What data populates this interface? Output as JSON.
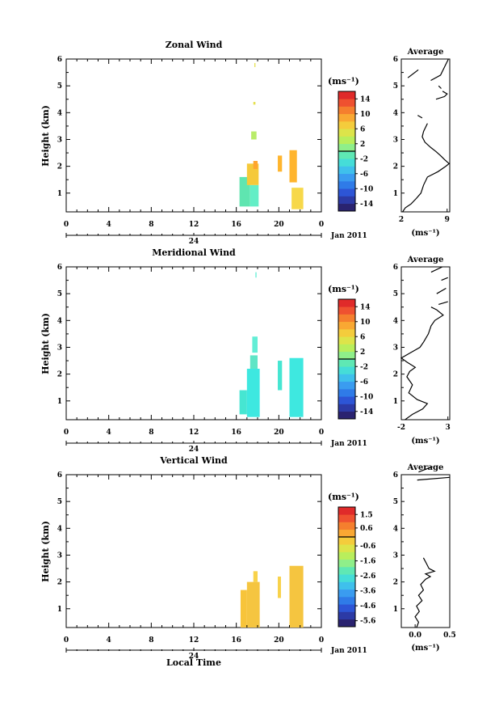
{
  "common": {
    "ylabel": "Height (km)",
    "avg_title": "Average",
    "unit_label": "(ms⁻¹)",
    "date_label": "Jan 2011",
    "date_tick": "24",
    "xlabel": "Local Time",
    "x_ticks": [
      "0",
      "4",
      "8",
      "12",
      "16",
      "20",
      "0"
    ],
    "y_ticks": [
      "1",
      "2",
      "3",
      "4",
      "5",
      "6"
    ]
  },
  "chart_data": [
    {
      "type": "heatmap",
      "title": "Zonal Wind",
      "xlim": [
        0,
        24
      ],
      "ylim": [
        0.3,
        6
      ],
      "colorbar": {
        "ticks": [
          "14",
          "10",
          "6",
          "2",
          "-2",
          "-6",
          "-10",
          "-14"
        ],
        "range": [
          -16,
          16
        ]
      },
      "cells": [
        {
          "x": [
            16.3,
            17.3
          ],
          "y": [
            0.5,
            1.6
          ],
          "value": -3,
          "color": "#5fe5b0"
        },
        {
          "x": [
            17.3,
            18.1
          ],
          "y": [
            0.5,
            1.3
          ],
          "value": -4,
          "color": "#63eec6"
        },
        {
          "x": [
            17.0,
            18.1
          ],
          "y": [
            1.3,
            2.1
          ],
          "value": 4,
          "color": "#f5c93a"
        },
        {
          "x": [
            17.6,
            18.0
          ],
          "y": [
            1.9,
            2.2
          ],
          "value": 7,
          "color": "#ffa52e"
        },
        {
          "x": [
            17.4,
            17.9
          ],
          "y": [
            3.0,
            3.3
          ],
          "value": 1,
          "color": "#b9ec6a"
        },
        {
          "x": [
            17.6,
            17.8
          ],
          "y": [
            4.3,
            4.4
          ],
          "value": 3,
          "color": "#e5e04f"
        },
        {
          "x": [
            17.7,
            17.8
          ],
          "y": [
            5.7,
            5.85
          ],
          "value": 3,
          "color": "#e5e04f"
        },
        {
          "x": [
            19.9,
            20.3
          ],
          "y": [
            1.8,
            2.4
          ],
          "value": 6,
          "color": "#ffb52e"
        },
        {
          "x": [
            21.0,
            21.7
          ],
          "y": [
            1.4,
            2.6
          ],
          "value": 6,
          "color": "#ffb52e"
        },
        {
          "x": [
            21.2,
            22.3
          ],
          "y": [
            0.4,
            1.2
          ],
          "value": 3,
          "color": "#f7d84a"
        }
      ],
      "average": {
        "xlim": [
          2,
          9.4
        ],
        "x_ticks": [
          "2",
          "9"
        ],
        "profile": [
          [
            2.2,
            0.3
          ],
          [
            2.6,
            0.45
          ],
          [
            3.5,
            0.6
          ],
          [
            4.3,
            0.8
          ],
          [
            5.0,
            1.0
          ],
          [
            5.4,
            1.3
          ],
          [
            6.0,
            1.6
          ],
          [
            7.6,
            1.8
          ],
          [
            8.8,
            2.0
          ],
          [
            9.3,
            2.1
          ],
          [
            8.6,
            2.25
          ],
          [
            8.0,
            2.4
          ],
          [
            7.3,
            2.55
          ],
          [
            6.5,
            2.7
          ],
          [
            5.6,
            2.9
          ],
          [
            5.2,
            3.1
          ],
          [
            5.4,
            3.3
          ],
          [
            6.0,
            3.6
          ]
        ],
        "segments": [
          [
            [
              4.5,
              3.9
            ],
            [
              5.2,
              3.8
            ]
          ],
          [
            [
              7.3,
              4.5
            ],
            [
              8.6,
              4.6
            ],
            [
              9.0,
              4.7
            ],
            [
              8.3,
              4.8
            ]
          ],
          [
            [
              7.7,
              5.0
            ],
            [
              8.1,
              4.9
            ]
          ],
          [
            [
              6.5,
              5.2
            ],
            [
              8.0,
              5.4
            ],
            [
              8.8,
              5.8
            ],
            [
              9.2,
              6.0
            ]
          ],
          [
            [
              3.0,
              5.3
            ],
            [
              4.6,
              5.6
            ]
          ]
        ]
      }
    },
    {
      "type": "heatmap",
      "title": "Meridional Wind",
      "xlim": [
        0,
        24
      ],
      "ylim": [
        0.3,
        6
      ],
      "colorbar": {
        "ticks": [
          "14",
          "10",
          "6",
          "2",
          "-2",
          "-6",
          "-10",
          "-14"
        ],
        "range": [
          -16,
          16
        ]
      },
      "cells": [
        {
          "x": [
            16.3,
            17.0
          ],
          "y": [
            0.5,
            1.4
          ],
          "value": -5,
          "color": "#46e6d2"
        },
        {
          "x": [
            17.0,
            18.2
          ],
          "y": [
            0.4,
            2.2
          ],
          "value": -5,
          "color": "#3ee8e0"
        },
        {
          "x": [
            17.3,
            18.0
          ],
          "y": [
            2.2,
            2.7
          ],
          "value": -4,
          "color": "#5fe5c6"
        },
        {
          "x": [
            17.5,
            18.0
          ],
          "y": [
            2.8,
            3.4
          ],
          "value": -4,
          "color": "#63eed6"
        },
        {
          "x": [
            17.8,
            17.9
          ],
          "y": [
            5.6,
            5.8
          ],
          "value": -4,
          "color": "#63eed6"
        },
        {
          "x": [
            19.9,
            20.3
          ],
          "y": [
            1.4,
            2.5
          ],
          "value": -5,
          "color": "#46e6d2"
        },
        {
          "x": [
            21.0,
            22.3
          ],
          "y": [
            0.4,
            2.6
          ],
          "value": -5,
          "color": "#3ee8e0"
        }
      ],
      "average": {
        "xlim": [
          -2,
          3.2
        ],
        "x_ticks": [
          "-2",
          "3"
        ],
        "profile": [
          [
            -1.6,
            0.3
          ],
          [
            -0.8,
            0.5
          ],
          [
            0.3,
            0.7
          ],
          [
            0.8,
            0.9
          ],
          [
            -0.3,
            1.05
          ],
          [
            -1.2,
            1.3
          ],
          [
            -0.8,
            1.6
          ],
          [
            -1.4,
            1.9
          ],
          [
            -1.1,
            2.1
          ],
          [
            -0.5,
            2.25
          ],
          [
            -1.4,
            2.45
          ],
          [
            -2.0,
            2.6
          ],
          [
            -1.0,
            2.8
          ],
          [
            0.0,
            3.0
          ],
          [
            0.4,
            3.2
          ],
          [
            0.9,
            3.5
          ],
          [
            1.2,
            3.8
          ],
          [
            1.6,
            4.0
          ],
          [
            2.5,
            4.2
          ],
          [
            1.8,
            4.4
          ],
          [
            1.2,
            4.5
          ]
        ],
        "segments": [
          [
            [
              2.0,
              4.6
            ],
            [
              3.0,
              4.7
            ]
          ],
          [
            [
              1.8,
              5.0
            ],
            [
              2.8,
              5.2
            ]
          ],
          [
            [
              2.3,
              5.5
            ],
            [
              3.0,
              5.6
            ]
          ],
          [
            [
              1.2,
              5.8
            ],
            [
              2.4,
              6.0
            ]
          ]
        ]
      }
    },
    {
      "type": "heatmap",
      "title": "Vertical Wind",
      "xlim": [
        0,
        24
      ],
      "ylim": [
        0.3,
        6
      ],
      "colorbar": {
        "ticks": [
          "1.5",
          "0.6",
          "-0.6",
          "-1.6",
          "-2.6",
          "-3.6",
          "-4.6",
          "-5.6"
        ],
        "range": [
          -6.0,
          2.0
        ]
      },
      "cells": [
        {
          "x": [
            16.4,
            17.0
          ],
          "y": [
            0.3,
            1.7
          ],
          "value": 0.5,
          "color": "#f7c43a"
        },
        {
          "x": [
            17.0,
            18.2
          ],
          "y": [
            0.3,
            2.0
          ],
          "value": 0.5,
          "color": "#f5c540"
        },
        {
          "x": [
            17.6,
            18.0
          ],
          "y": [
            2.0,
            2.4
          ],
          "value": 0.3,
          "color": "#f8d24a"
        },
        {
          "x": [
            19.9,
            20.2
          ],
          "y": [
            1.4,
            2.2
          ],
          "value": 0.2,
          "color": "#f8d24a"
        },
        {
          "x": [
            21.0,
            22.3
          ],
          "y": [
            0.3,
            2.6
          ],
          "value": 0.5,
          "color": "#f5c540"
        }
      ],
      "average": {
        "xlim": [
          -0.2,
          0.5
        ],
        "x_ticks": [
          "0.0",
          "0.5"
        ],
        "profile": [
          [
            0.02,
            0.3
          ],
          [
            0.05,
            0.5
          ],
          [
            0.0,
            0.7
          ],
          [
            0.06,
            0.9
          ],
          [
            0.02,
            1.1
          ],
          [
            0.1,
            1.3
          ],
          [
            0.05,
            1.5
          ],
          [
            0.12,
            1.7
          ],
          [
            0.08,
            1.9
          ],
          [
            0.15,
            2.1
          ],
          [
            0.22,
            2.2
          ],
          [
            0.15,
            2.3
          ],
          [
            0.28,
            2.4
          ],
          [
            0.2,
            2.5
          ],
          [
            0.16,
            2.7
          ],
          [
            0.12,
            2.9
          ]
        ],
        "segments": [
          [
            [
              0.03,
              5.8
            ],
            [
              0.5,
              5.9
            ]
          ],
          [
            [
              0.05,
              6.1
            ],
            [
              0.25,
              6.3
            ]
          ]
        ]
      }
    }
  ]
}
